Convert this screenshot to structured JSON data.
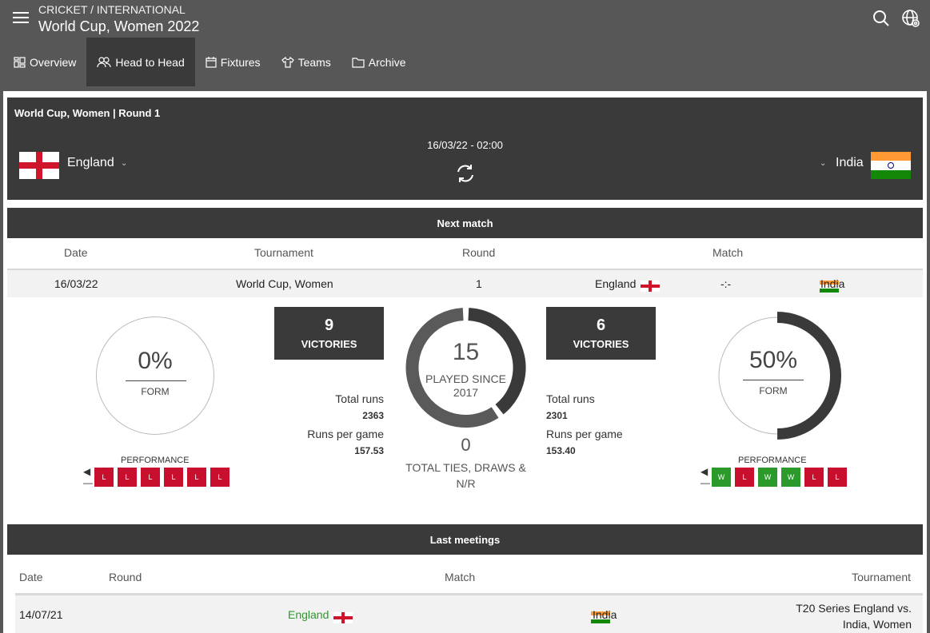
{
  "header": {
    "breadcrumb": "CRICKET / INTERNATIONAL",
    "title": "World Cup, Women 2022"
  },
  "tabs": [
    {
      "label": "Overview",
      "icon": "overview-icon"
    },
    {
      "label": "Head to Head",
      "icon": "users-icon"
    },
    {
      "label": "Fixtures",
      "icon": "calendar-icon"
    },
    {
      "label": "Teams",
      "icon": "shirt-icon"
    },
    {
      "label": "Archive",
      "icon": "folder-icon"
    }
  ],
  "match": {
    "round_title": "World Cup, Women | Round 1",
    "home_team": "England",
    "away_team": "India",
    "datetime": "16/03/22 - 02:00"
  },
  "next_match": {
    "title": "Next match",
    "headers": {
      "date": "Date",
      "tournament": "Tournament",
      "round": "Round",
      "match": "Match"
    },
    "row": {
      "date": "16/03/22",
      "tournament": "World Cup, Women",
      "round": "1",
      "home": "England",
      "score": "-:-",
      "away": "India"
    }
  },
  "stats": {
    "home": {
      "form": "0%",
      "form_fraction": 0.0,
      "form_label": "FORM",
      "victories": "9",
      "victories_label": "VICTORIES",
      "total_runs_label": "Total runs",
      "total_runs": "2363",
      "rpg_label": "Runs per game",
      "rpg": "157.53",
      "performance_label": "PERFORMANCE",
      "performance": [
        "L",
        "L",
        "L",
        "L",
        "L",
        "L"
      ]
    },
    "away": {
      "form": "50%",
      "form_fraction": 0.5,
      "form_label": "FORM",
      "victories": "6",
      "victories_label": "VICTORIES",
      "total_runs_label": "Total runs",
      "total_runs": "2301",
      "rpg_label": "Runs per game",
      "rpg": "153.40",
      "performance_label": "PERFORMANCE",
      "performance": [
        "W",
        "L",
        "W",
        "W",
        "L",
        "L"
      ]
    },
    "played": "15",
    "played_label": "PLAYED SINCE 2017",
    "ties": "0",
    "ties_label": "TOTAL TIES, DRAWS & N/R"
  },
  "last_meetings": {
    "title": "Last meetings",
    "headers": {
      "date": "Date",
      "round": "Round",
      "match": "Match",
      "tournament": "Tournament"
    },
    "rows": [
      {
        "date": "14/07/21",
        "home": "England",
        "away": "India",
        "tournament": "T20 Series England vs. India, Women"
      }
    ]
  },
  "colors": {
    "accent_dark": "#3a3a3a",
    "loss": "#c8102e",
    "win": "#2b9a2b",
    "winner_text": "#2b9a2b"
  }
}
